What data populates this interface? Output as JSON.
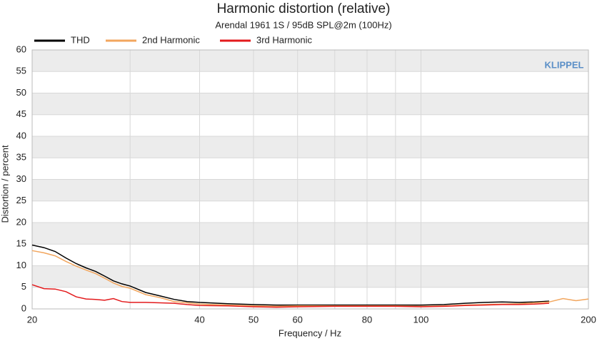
{
  "chart_data": {
    "type": "line",
    "title": "Harmonic distortion (relative)",
    "subtitle": "Arendal 1961 1S / 95dB SPL@2m (100Hz)",
    "x_label": "Frequency / Hz",
    "y_label": "Distortion / percent",
    "watermark": "KLIPPEL",
    "x_log": true,
    "xlim": [
      20,
      200
    ],
    "xticks": [
      20,
      40,
      50,
      60,
      80,
      100,
      200
    ],
    "x_minor_grid": [
      30,
      70,
      90
    ],
    "ylim": [
      0,
      60
    ],
    "yticks": [
      0,
      5,
      10,
      15,
      20,
      25,
      30,
      35,
      40,
      45,
      50,
      55,
      60
    ],
    "grid": true,
    "band_shading": true,
    "x": [
      20,
      21,
      22,
      23,
      24,
      25,
      26,
      27,
      28,
      29,
      30,
      32,
      34,
      36,
      38,
      40,
      45,
      50,
      55,
      60,
      70,
      80,
      90,
      100,
      110,
      120,
      130,
      140,
      150,
      160,
      170,
      180,
      190,
      200
    ],
    "series": [
      {
        "name": "THD",
        "color": "#000000",
        "values": [
          14.8,
          14.2,
          13.3,
          11.8,
          10.5,
          9.5,
          8.7,
          7.6,
          6.5,
          5.8,
          5.3,
          3.8,
          3.0,
          2.2,
          1.7,
          1.5,
          1.2,
          1.0,
          0.9,
          0.9,
          0.9,
          0.9,
          0.9,
          0.9,
          1.0,
          1.3,
          1.5,
          1.6,
          1.5,
          1.6,
          1.8,
          null,
          null,
          null
        ]
      },
      {
        "name": "2nd Harmonic",
        "color": "#f2a65e",
        "values": [
          13.5,
          13.0,
          12.3,
          11.0,
          9.9,
          9.0,
          8.2,
          7.1,
          6.0,
          5.2,
          4.8,
          3.3,
          2.6,
          1.7,
          1.4,
          1.1,
          0.9,
          0.7,
          0.6,
          0.7,
          0.7,
          0.7,
          0.7,
          0.6,
          0.7,
          0.9,
          1.0,
          1.1,
          1.2,
          1.4,
          1.6,
          2.4,
          1.9,
          2.3
        ]
      },
      {
        "name": "3rd Harmonic",
        "color": "#e31a1c",
        "values": [
          5.6,
          4.7,
          4.6,
          4.0,
          2.8,
          2.3,
          2.2,
          2.0,
          2.4,
          1.7,
          1.5,
          1.5,
          1.4,
          1.3,
          1.0,
          0.8,
          0.7,
          0.5,
          0.4,
          0.5,
          0.6,
          0.6,
          0.6,
          0.5,
          0.6,
          0.8,
          0.9,
          1.0,
          1.0,
          1.1,
          1.3,
          null,
          null,
          null
        ]
      }
    ]
  }
}
